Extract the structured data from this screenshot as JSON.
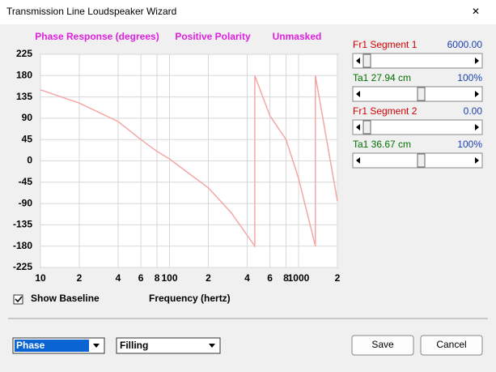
{
  "window": {
    "title": "Transmission Line Loudspeaker Wizard",
    "close": "✕"
  },
  "chart_data": {
    "type": "line",
    "annotations": [
      "Phase Response (degrees)",
      "Positive Polarity",
      "Unmasked"
    ],
    "x_label": "Frequency (hertz)",
    "x": [
      10,
      20,
      40,
      60,
      80,
      100,
      200,
      300,
      458,
      458,
      600,
      800,
      1000,
      1350,
      1350,
      2000
    ],
    "values": [
      150,
      122,
      83,
      45,
      20,
      4,
      -57,
      -109,
      -180,
      180,
      95,
      45,
      -37,
      -180,
      180,
      -85
    ],
    "color": "#f4a6a6",
    "xscale": "log",
    "xlim": [
      10,
      2000
    ],
    "xticks": [
      10,
      {
        "value": 20,
        "label": "2"
      },
      {
        "value": 40,
        "label": "4"
      },
      {
        "value": 60,
        "label": "6"
      },
      {
        "value": 80,
        "label": "8"
      },
      100,
      {
        "value": 200,
        "label": "2"
      },
      {
        "value": 400,
        "label": "4"
      },
      {
        "value": 600,
        "label": "6"
      },
      {
        "value": 800,
        "label": "8"
      },
      1000,
      {
        "value": 2000,
        "label": "2"
      }
    ],
    "ylim": [
      -225,
      225
    ],
    "yticks": [
      225,
      180,
      135,
      90,
      45,
      0,
      -45,
      -90,
      -135,
      -180,
      -225
    ],
    "grid": true
  },
  "controls": {
    "segments": [
      {
        "label": "Fr1  Segment 1",
        "value": "6000.00",
        "taper": "Ta1  27.94 cm",
        "taper_value": "100%"
      },
      {
        "label": "Fr1  Segment 2",
        "value": "0.00",
        "taper": "Ta1  36.67 cm",
        "taper_value": "100%"
      }
    ],
    "show_baseline": "Show Baseline",
    "dropdowns": [
      "Phase",
      "Filling"
    ],
    "buttons": [
      "Save",
      "Cancel"
    ]
  }
}
